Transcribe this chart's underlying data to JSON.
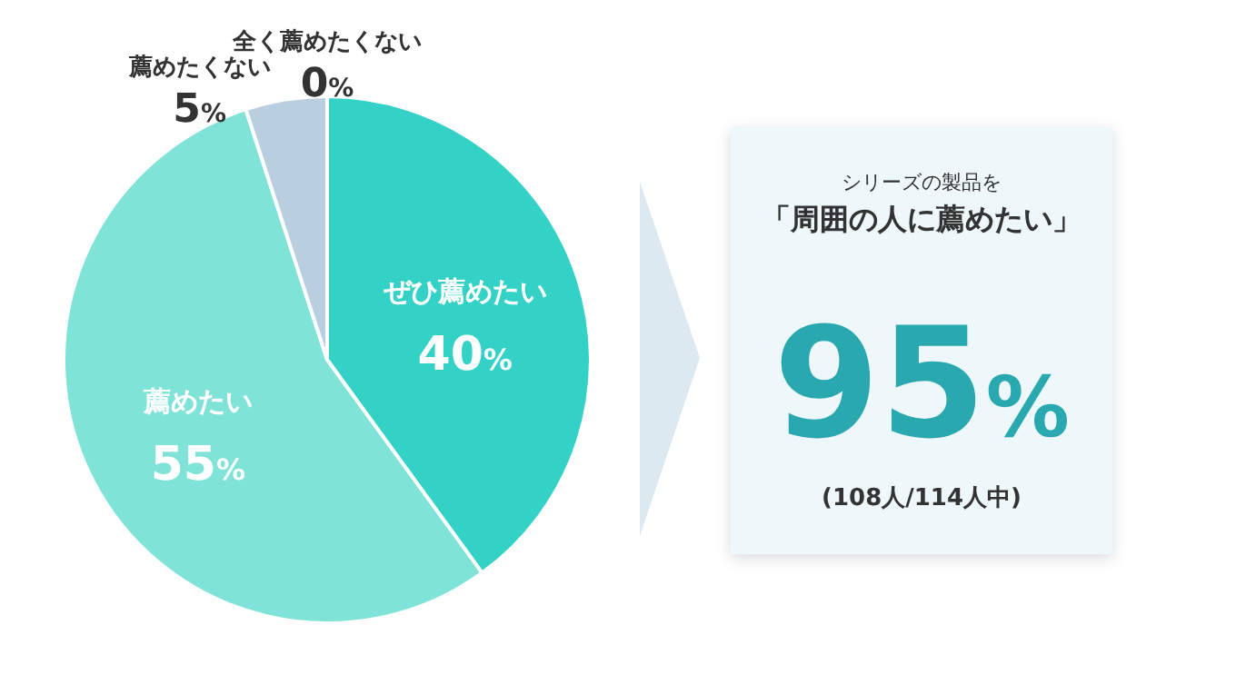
{
  "chart_data": [
    {
      "type": "pie",
      "categories": [
        "ぜひ薦めたい",
        "薦めたい",
        "薦めたくない",
        "全く薦めたくない"
      ],
      "values": [
        40,
        55,
        5,
        0
      ],
      "colors": [
        "#33d1c6",
        "#7fe3d8",
        "#b9cfe0",
        "#9fb8cc"
      ],
      "value_labels": [
        "40%",
        "55%",
        "5%",
        "0%"
      ]
    },
    {
      "type": "other",
      "title": "シリーズの製品を",
      "subtitle": "「周囲の人に薦めたい」",
      "annotations": [
        "95%",
        "(108人/114人中)"
      ]
    }
  ]
}
